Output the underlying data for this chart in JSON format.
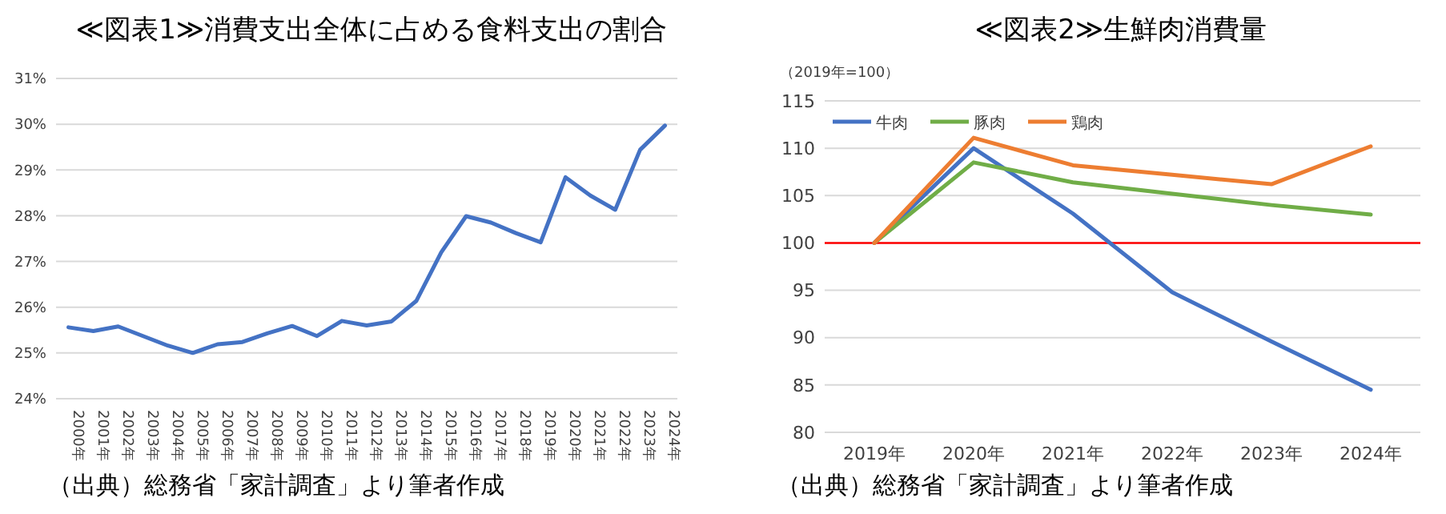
{
  "chart_data": [
    {
      "type": "line",
      "title": "≪図表1≫消費支出全体に占める食料支出の割合",
      "categories": [
        "2000年",
        "2001年",
        "2002年",
        "2003年",
        "2004年",
        "2005年",
        "2006年",
        "2007年",
        "2008年",
        "2009年",
        "2010年",
        "2011年",
        "2012年",
        "2013年",
        "2014年",
        "2015年",
        "2016年",
        "2017年",
        "2018年",
        "2019年",
        "2020年",
        "2021年",
        "2022年",
        "2023年",
        "2024年"
      ],
      "series": [
        {
          "color": "#4472c4",
          "values": [
            25.56,
            25.48,
            25.58,
            25.37,
            25.16,
            25.0,
            25.19,
            25.24,
            25.43,
            25.59,
            25.37,
            25.7,
            25.6,
            25.69,
            26.14,
            27.2,
            27.99,
            27.85,
            27.62,
            27.42,
            28.84,
            28.44,
            28.13,
            29.44,
            29.97
          ]
        }
      ],
      "ylim": [
        24,
        31
      ],
      "yticks": [
        {
          "value": 24,
          "label": "24%"
        },
        {
          "value": 25,
          "label": "25%"
        },
        {
          "value": 26,
          "label": "26%"
        },
        {
          "value": 27,
          "label": "27%"
        },
        {
          "value": 28,
          "label": "28%"
        },
        {
          "value": 29,
          "label": "29%"
        },
        {
          "value": 30,
          "label": "30%"
        },
        {
          "value": 31,
          "label": "31%"
        }
      ],
      "grid": "y",
      "legend": false,
      "marker": "none",
      "line_style": "solid",
      "annotations": [
        "（出典）総務省「家計調査」より筆者作成"
      ]
    },
    {
      "type": "line",
      "title": "≪図表2≫生鮮肉消費量",
      "ylabel": "（2019年=100）",
      "categories": [
        "2019年",
        "2020年",
        "2021年",
        "2022年",
        "2023年",
        "2024年"
      ],
      "series": [
        {
          "name": "牛肉",
          "color": "#4472c4",
          "values": [
            100,
            110.0,
            103.1,
            94.8,
            89.6,
            84.5
          ]
        },
        {
          "name": "豚肉",
          "color": "#70ad47",
          "values": [
            100,
            108.5,
            106.4,
            105.2,
            104.0,
            103.0
          ]
        },
        {
          "name": "鶏肉",
          "color": "#ed7d31",
          "values": [
            100,
            111.1,
            108.2,
            107.2,
            106.2,
            110.2
          ]
        }
      ],
      "ylim": [
        80,
        115
      ],
      "yticks": [
        80,
        85,
        90,
        95,
        100,
        105,
        110,
        115
      ],
      "ref_lines": [
        {
          "axis": "y",
          "value": 100,
          "color": "#ff0000"
        }
      ],
      "grid": "y",
      "legend": "top left",
      "marker": "none",
      "line_style": "solid",
      "annotations": [
        "（出典）総務省「家計調査」より筆者作成"
      ]
    }
  ]
}
